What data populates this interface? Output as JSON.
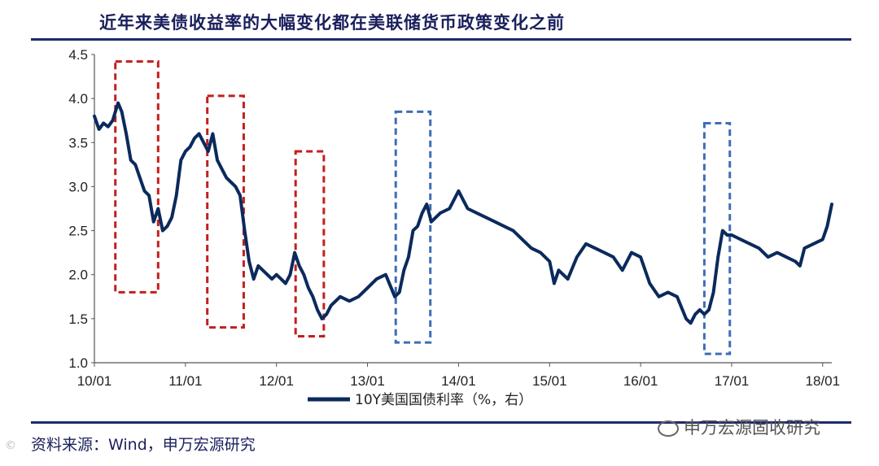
{
  "title": "近年来美债收益率的大幅变化都在美联储货币政策变化之前",
  "source": "资料来源：Wind，申万宏源研究",
  "watermark": "申万宏源固收研究",
  "corner_mark": "©",
  "colors": {
    "line": "#0b2a5c",
    "red_box": "#c41e1e",
    "blue_box": "#3e6db8",
    "rule": "#1f2a6b"
  },
  "chart_data": {
    "type": "line",
    "title": "",
    "xlabel": "",
    "ylabel": "",
    "ylim": [
      1.0,
      4.5
    ],
    "yticks": [
      1.0,
      1.5,
      2.0,
      2.5,
      3.0,
      3.5,
      4.0,
      4.5
    ],
    "ytick_labels": [
      "1.0",
      "1.5",
      "2.0",
      "2.5",
      "3.0",
      "3.5",
      "4.0",
      "4.5"
    ],
    "xlim": [
      2010.0,
      2018.1
    ],
    "xticks": [
      2010,
      2011,
      2012,
      2013,
      2014,
      2015,
      2016,
      2017,
      2018
    ],
    "xtick_labels": [
      "10/01",
      "11/01",
      "12/01",
      "13/01",
      "14/01",
      "15/01",
      "16/01",
      "17/01",
      "18/01"
    ],
    "legend": "bottom-center",
    "series": [
      {
        "name": "10Y美国国债利率（%，右）",
        "x": [
          2010.0,
          2010.05,
          2010.1,
          2010.15,
          2010.2,
          2010.26,
          2010.3,
          2010.35,
          2010.4,
          2010.45,
          2010.5,
          2010.55,
          2010.6,
          2010.65,
          2010.7,
          2010.75,
          2010.8,
          2010.85,
          2010.9,
          2010.95,
          2011.0,
          2011.05,
          2011.1,
          2011.15,
          2011.2,
          2011.25,
          2011.3,
          2011.35,
          2011.4,
          2011.45,
          2011.5,
          2011.55,
          2011.6,
          2011.65,
          2011.7,
          2011.75,
          2011.8,
          2011.85,
          2011.9,
          2011.95,
          2012.0,
          2012.05,
          2012.1,
          2012.15,
          2012.2,
          2012.25,
          2012.3,
          2012.35,
          2012.4,
          2012.45,
          2012.5,
          2012.55,
          2012.6,
          2012.7,
          2012.8,
          2012.9,
          2013.0,
          2013.1,
          2013.2,
          2013.3,
          2013.35,
          2013.4,
          2013.45,
          2013.5,
          2013.55,
          2013.6,
          2013.65,
          2013.7,
          2013.8,
          2013.9,
          2014.0,
          2014.05,
          2014.1,
          2014.2,
          2014.3,
          2014.4,
          2014.5,
          2014.6,
          2014.7,
          2014.8,
          2014.9,
          2015.0,
          2015.05,
          2015.1,
          2015.2,
          2015.3,
          2015.4,
          2015.5,
          2015.6,
          2015.7,
          2015.8,
          2015.9,
          2016.0,
          2016.1,
          2016.2,
          2016.3,
          2016.4,
          2016.5,
          2016.55,
          2016.6,
          2016.65,
          2016.7,
          2016.75,
          2016.8,
          2016.85,
          2016.9,
          2016.95,
          2017.0,
          2017.1,
          2017.2,
          2017.3,
          2017.4,
          2017.5,
          2017.6,
          2017.7,
          2017.75,
          2017.8,
          2017.9,
          2018.0,
          2018.05,
          2018.1
        ],
        "values": [
          3.8,
          3.65,
          3.72,
          3.68,
          3.75,
          3.95,
          3.85,
          3.6,
          3.3,
          3.25,
          3.1,
          2.95,
          2.9,
          2.6,
          2.75,
          2.5,
          2.55,
          2.65,
          2.9,
          3.3,
          3.4,
          3.45,
          3.55,
          3.6,
          3.5,
          3.4,
          3.6,
          3.3,
          3.2,
          3.1,
          3.05,
          3.0,
          2.9,
          2.5,
          2.15,
          1.95,
          2.1,
          2.05,
          2.0,
          1.95,
          2.0,
          1.95,
          1.9,
          2.0,
          2.25,
          2.1,
          2.0,
          1.85,
          1.75,
          1.6,
          1.5,
          1.55,
          1.65,
          1.75,
          1.7,
          1.75,
          1.85,
          1.95,
          2.0,
          1.75,
          1.8,
          2.05,
          2.2,
          2.5,
          2.55,
          2.7,
          2.8,
          2.6,
          2.7,
          2.75,
          2.95,
          2.85,
          2.75,
          2.7,
          2.65,
          2.6,
          2.55,
          2.5,
          2.4,
          2.3,
          2.25,
          2.15,
          1.9,
          2.05,
          1.95,
          2.2,
          2.35,
          2.3,
          2.25,
          2.2,
          2.05,
          2.25,
          2.2,
          1.9,
          1.75,
          1.8,
          1.75,
          1.5,
          1.45,
          1.55,
          1.6,
          1.55,
          1.6,
          1.8,
          2.2,
          2.5,
          2.45,
          2.45,
          2.4,
          2.35,
          2.3,
          2.2,
          2.25,
          2.2,
          2.15,
          2.1,
          2.3,
          2.35,
          2.4,
          2.55,
          2.8
        ]
      }
    ],
    "highlight_boxes": [
      {
        "color": "red",
        "x0": 2010.23,
        "x1": 2010.7,
        "y0": 1.8,
        "y1": 4.42
      },
      {
        "color": "red",
        "x0": 2011.24,
        "x1": 2011.64,
        "y0": 1.4,
        "y1": 4.03
      },
      {
        "color": "red",
        "x0": 2012.21,
        "x1": 2012.52,
        "y0": 1.3,
        "y1": 3.4
      },
      {
        "color": "blue",
        "x0": 2013.31,
        "x1": 2013.69,
        "y0": 1.23,
        "y1": 3.85
      },
      {
        "color": "blue",
        "x0": 2016.7,
        "x1": 2016.98,
        "y0": 1.1,
        "y1": 3.72
      }
    ]
  }
}
